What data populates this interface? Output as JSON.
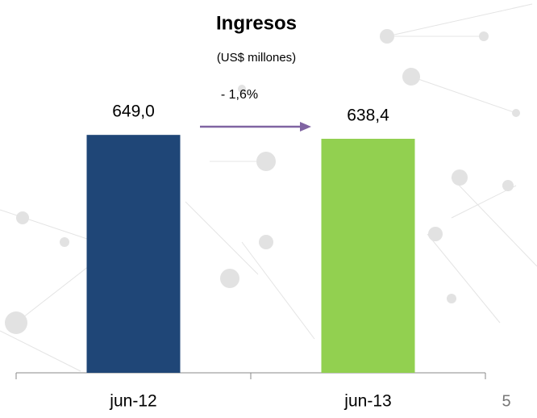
{
  "chart_data": {
    "type": "bar",
    "title": "Ingresos",
    "subtitle": "(US$ millones)",
    "categories": [
      "jun-12",
      "jun-13"
    ],
    "values": [
      649.0,
      638.4
    ],
    "value_labels": [
      "649,0",
      "638,4"
    ],
    "colors": [
      "#1f4677",
      "#92d050"
    ],
    "ylim": [
      0,
      700
    ],
    "annotation": "- 1,6%",
    "arrow_color": "#8064a2"
  },
  "page_number": "5"
}
